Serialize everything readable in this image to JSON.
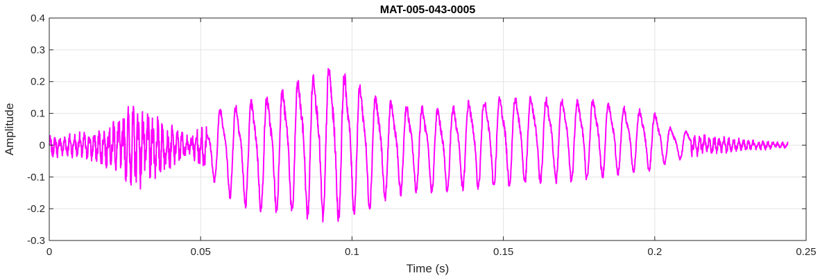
{
  "chart_data": {
    "type": "line",
    "title": "MAT-005-043-0005",
    "xlabel": "Time (s)",
    "ylabel": "Amplitude",
    "xlim": [
      0,
      0.25
    ],
    "ylim": [
      -0.3,
      0.4
    ],
    "xticks": [
      0,
      0.05,
      0.1,
      0.15,
      0.2,
      0.25
    ],
    "xtick_labels": [
      "0",
      "0.05",
      "0.1",
      "0.15",
      "0.2",
      "0.25"
    ],
    "yticks": [
      -0.3,
      -0.2,
      -0.1,
      0,
      0.1,
      0.2,
      0.3,
      0.4
    ],
    "ytick_labels": [
      "-0.3",
      "-0.2",
      "-0.1",
      "0",
      "0.1",
      "0.2",
      "0.3",
      "0.4"
    ],
    "grid": true,
    "line_color": "#ff00ff",
    "series": [
      {
        "x_start": 0,
        "x_end": 0.244,
        "envelope": [
          {
            "t": 0.0,
            "max": 0.03,
            "min": -0.04
          },
          {
            "t": 0.008,
            "max": 0.04,
            "min": -0.04
          },
          {
            "t": 0.016,
            "max": 0.05,
            "min": -0.06
          },
          {
            "t": 0.02,
            "max": 0.09,
            "min": -0.09
          },
          {
            "t": 0.026,
            "max": 0.13,
            "min": -0.13
          },
          {
            "t": 0.03,
            "max": 0.14,
            "min": -0.14
          },
          {
            "t": 0.034,
            "max": 0.12,
            "min": -0.13
          },
          {
            "t": 0.04,
            "max": 0.07,
            "min": -0.08
          },
          {
            "t": 0.046,
            "max": 0.04,
            "min": -0.04
          },
          {
            "t": 0.052,
            "max": 0.08,
            "min": -0.1
          },
          {
            "t": 0.056,
            "max": 0.14,
            "min": -0.13
          },
          {
            "t": 0.062,
            "max": 0.16,
            "min": -0.19
          },
          {
            "t": 0.07,
            "max": 0.18,
            "min": -0.21
          },
          {
            "t": 0.078,
            "max": 0.22,
            "min": -0.22
          },
          {
            "t": 0.084,
            "max": 0.26,
            "min": -0.23
          },
          {
            "t": 0.09,
            "max": 0.28,
            "min": -0.24
          },
          {
            "t": 0.093,
            "max": 0.3,
            "min": -0.25
          },
          {
            "t": 0.1,
            "max": 0.25,
            "min": -0.22
          },
          {
            "t": 0.106,
            "max": 0.2,
            "min": -0.2
          },
          {
            "t": 0.112,
            "max": 0.17,
            "min": -0.17
          },
          {
            "t": 0.12,
            "max": 0.15,
            "min": -0.15
          },
          {
            "t": 0.13,
            "max": 0.14,
            "min": -0.15
          },
          {
            "t": 0.14,
            "max": 0.17,
            "min": -0.14
          },
          {
            "t": 0.15,
            "max": 0.18,
            "min": -0.13
          },
          {
            "t": 0.16,
            "max": 0.18,
            "min": -0.12
          },
          {
            "t": 0.17,
            "max": 0.17,
            "min": -0.12
          },
          {
            "t": 0.18,
            "max": 0.17,
            "min": -0.11
          },
          {
            "t": 0.19,
            "max": 0.14,
            "min": -0.09
          },
          {
            "t": 0.2,
            "max": 0.12,
            "min": -0.08
          },
          {
            "t": 0.206,
            "max": 0.06,
            "min": -0.05
          },
          {
            "t": 0.212,
            "max": 0.05,
            "min": -0.04
          },
          {
            "t": 0.22,
            "max": 0.03,
            "min": -0.03
          },
          {
            "t": 0.23,
            "max": 0.02,
            "min": -0.02
          },
          {
            "t": 0.244,
            "max": 0.01,
            "min": -0.01
          }
        ]
      }
    ]
  }
}
